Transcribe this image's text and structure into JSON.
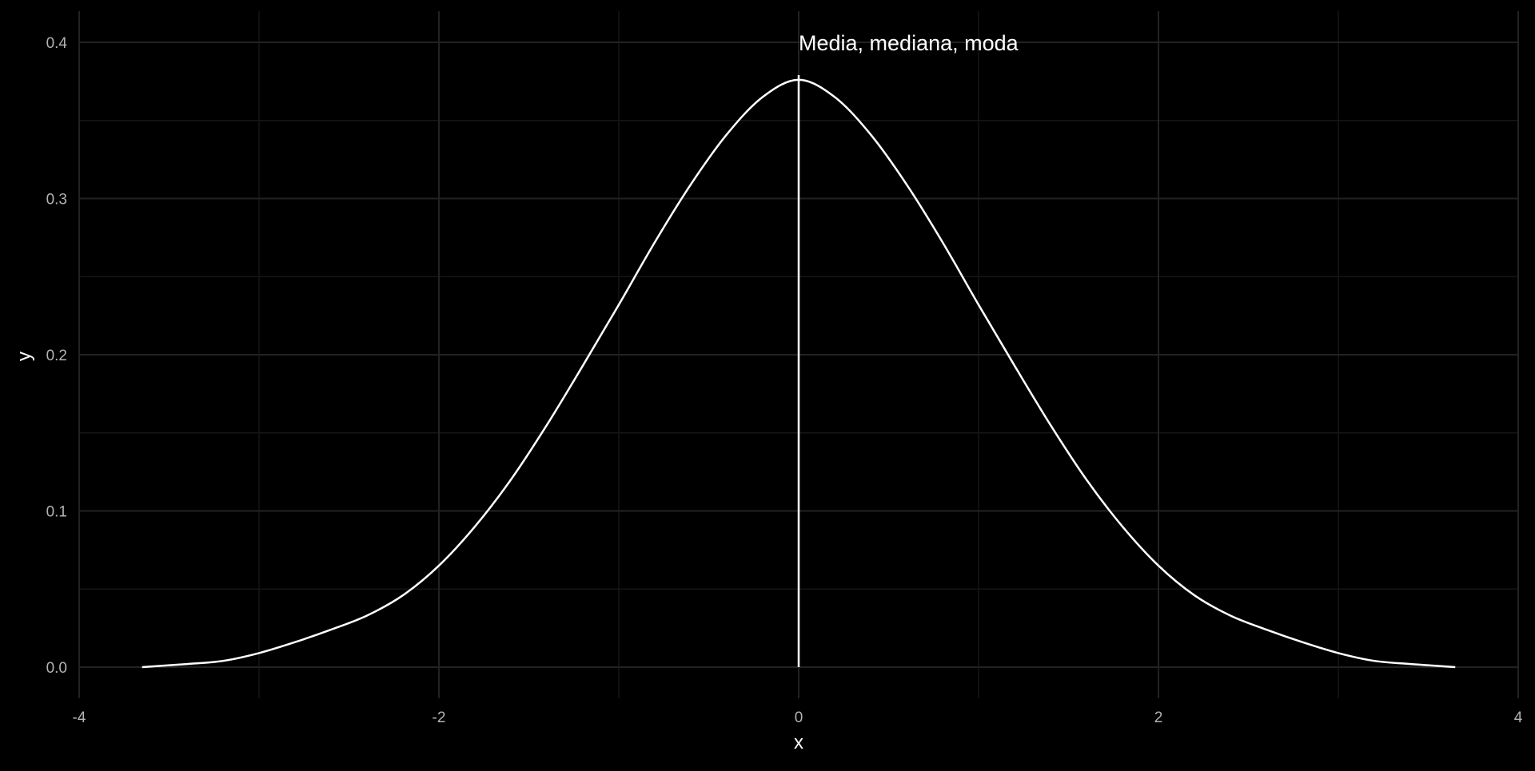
{
  "colors": {
    "background": "#000000",
    "grid_major": "#222222",
    "grid_minor": "#161616",
    "curve": "#ffffff",
    "tick_text": "#b3b3b3",
    "axis_text": "#ffffff"
  },
  "chart_data": {
    "type": "line",
    "title": "",
    "xlabel": "x",
    "ylabel": "y",
    "xlim": [
      -4,
      4
    ],
    "ylim": [
      0,
      0.4
    ],
    "x_ticks": [
      -4,
      -2,
      0,
      2,
      4
    ],
    "x_tick_labels": [
      "-4",
      "-2",
      "0",
      "2",
      "4"
    ],
    "y_ticks": [
      0.0,
      0.1,
      0.2,
      0.3,
      0.4
    ],
    "y_tick_labels": [
      "0.0",
      "0.1",
      "0.2",
      "0.3",
      "0.4"
    ],
    "grid": true,
    "legend": "none",
    "series": [
      {
        "x": [
          -3.65,
          -3.4,
          -3.2,
          -3.0,
          -2.8,
          -2.6,
          -2.4,
          -2.2,
          -2.0,
          -1.8,
          -1.6,
          -1.4,
          -1.2,
          -1.0,
          -0.8,
          -0.6,
          -0.4,
          -0.2,
          0.0,
          0.2,
          0.4,
          0.6,
          0.8,
          1.0,
          1.2,
          1.4,
          1.6,
          1.8,
          2.0,
          2.2,
          2.4,
          2.6,
          2.8,
          3.0,
          3.2,
          3.4,
          3.65
        ],
        "y": [
          0.0,
          0.002,
          0.004,
          0.009,
          0.016,
          0.024,
          0.033,
          0.046,
          0.065,
          0.09,
          0.12,
          0.155,
          0.193,
          0.232,
          0.272,
          0.309,
          0.341,
          0.365,
          0.376,
          0.365,
          0.341,
          0.309,
          0.272,
          0.232,
          0.193,
          0.155,
          0.12,
          0.09,
          0.065,
          0.046,
          0.033,
          0.024,
          0.016,
          0.009,
          0.004,
          0.002,
          0.0
        ]
      }
    ],
    "vline": {
      "x": 0,
      "y_top": 0.379
    },
    "annotation": {
      "text": "Media, mediana, moda",
      "x": 0,
      "y": 0.4
    }
  }
}
